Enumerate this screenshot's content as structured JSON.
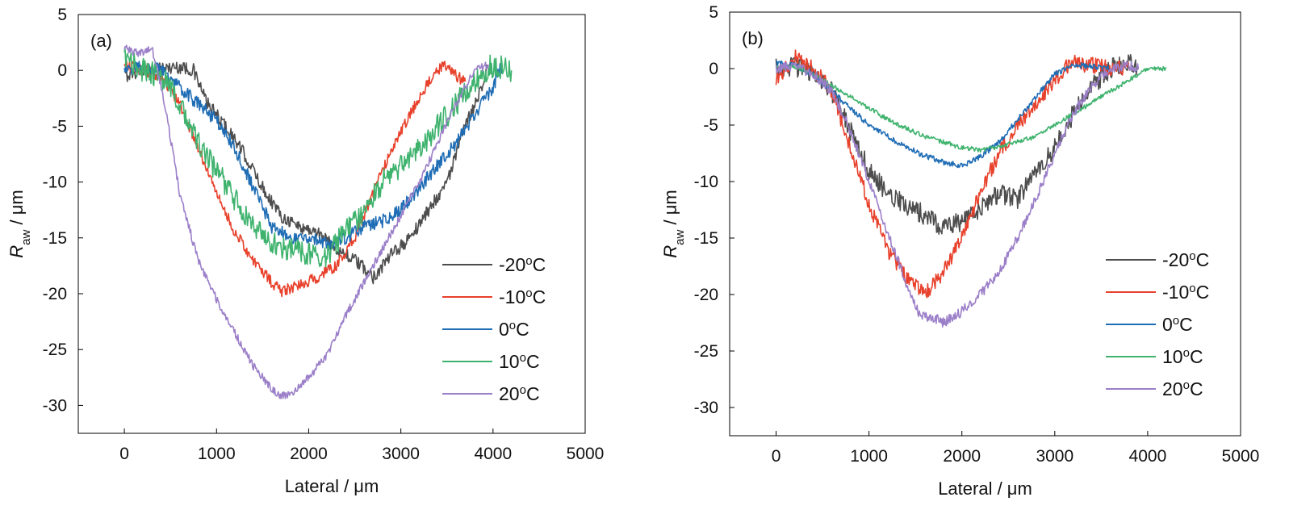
{
  "chart_data": [
    {
      "type": "line",
      "panel_label": "(a)",
      "xlabel": "Lateral / μm",
      "ylabel_main": "R",
      "ylabel_sub": "aw",
      "ylabel_unit": " / μm",
      "xlim": [
        -500,
        5000
      ],
      "ylim": [
        -32.5,
        5
      ],
      "xticks": [
        "0",
        "1000",
        "2000",
        "3000",
        "4000",
        "5000"
      ],
      "yticks": [
        "5",
        "0",
        "-5",
        "-10",
        "-15",
        "-20",
        "-25",
        "-30"
      ],
      "grid": false,
      "legend_position": "lower-right",
      "series": [
        {
          "name": "-20",
          "color": "#4d4d4d",
          "noise": 0.6,
          "x": [
            0,
            200,
            400,
            600,
            750,
            900,
            1100,
            1300,
            1500,
            1700,
            1900,
            2100,
            2300,
            2500,
            2700,
            2900,
            3100,
            3300,
            3500,
            3700,
            3850,
            3950
          ],
          "y": [
            -0.5,
            0,
            0.2,
            0.3,
            0,
            -3,
            -5,
            -7.5,
            -10.5,
            -13,
            -14,
            -14.5,
            -16,
            -17,
            -18.5,
            -16.5,
            -15,
            -12.5,
            -10,
            -5,
            -2,
            0.5
          ]
        },
        {
          "name": "-10",
          "color": "#e8412c",
          "noise": 0.5,
          "x": [
            0,
            200,
            400,
            600,
            800,
            1000,
            1200,
            1400,
            1600,
            1700,
            1900,
            2100,
            2300,
            2500,
            2700,
            2900,
            3100,
            3300,
            3400,
            3500,
            3600,
            3700
          ],
          "y": [
            0.5,
            0,
            -0.5,
            -3,
            -7,
            -11,
            -14.5,
            -17,
            -19,
            -19.8,
            -19.2,
            -18.5,
            -17.5,
            -15,
            -11,
            -7,
            -4,
            -1,
            0,
            0.5,
            -0.5,
            -1
          ]
        },
        {
          "name": "0",
          "color": "#1f6db5",
          "noise": 0.6,
          "x": [
            0,
            200,
            400,
            600,
            800,
            1000,
            1200,
            1400,
            1600,
            1800,
            2000,
            2200,
            2400,
            2600,
            2800,
            3000,
            3200,
            3400,
            3600,
            3800,
            4000,
            4100
          ],
          "y": [
            0.2,
            0.3,
            0,
            -1.5,
            -3,
            -4.5,
            -7,
            -10.5,
            -14,
            -15,
            -15,
            -15.5,
            -15,
            -14,
            -13.5,
            -12.5,
            -10.5,
            -8.5,
            -6.5,
            -4,
            -1.5,
            0.5
          ]
        },
        {
          "name": "10",
          "color": "#3fb36e",
          "noise": 1.1,
          "x": [
            0,
            200,
            400,
            600,
            800,
            1000,
            1200,
            1400,
            1600,
            1800,
            2000,
            2200,
            2400,
            2600,
            2800,
            3000,
            3200,
            3400,
            3600,
            3800,
            4000,
            4200
          ],
          "y": [
            1,
            0,
            -0.5,
            -3,
            -6.5,
            -9,
            -11.5,
            -14,
            -15.5,
            -16,
            -16.5,
            -16.5,
            -14.5,
            -12.5,
            -10,
            -8.5,
            -7,
            -5,
            -3,
            -1,
            0.5,
            0
          ]
        },
        {
          "name": "20",
          "color": "#9b7fc8",
          "noise": 0.35,
          "x": [
            0,
            150,
            300,
            400,
            500,
            600,
            800,
            1000,
            1200,
            1400,
            1600,
            1700,
            1800,
            2000,
            2200,
            2400,
            2600,
            2800,
            3000,
            3200,
            3400,
            3600,
            3800,
            3950
          ],
          "y": [
            2,
            1.5,
            2,
            -1.5,
            -6,
            -11,
            -17,
            -20.5,
            -23.5,
            -26.5,
            -28.5,
            -29.2,
            -29,
            -27.5,
            -25.5,
            -22,
            -19,
            -16,
            -13,
            -10,
            -6.5,
            -3,
            0,
            0.5
          ]
        }
      ]
    },
    {
      "type": "line",
      "panel_label": "(b)",
      "xlabel": "Lateral / μm",
      "ylabel_main": "R",
      "ylabel_sub": "aw",
      "ylabel_unit": " / μm",
      "xlim": [
        -500,
        5000
      ],
      "ylim": [
        -32.5,
        5
      ],
      "xticks": [
        "0",
        "1000",
        "2000",
        "3000",
        "4000",
        "5000"
      ],
      "yticks": [
        "5",
        "0",
        "-5",
        "-10",
        "-15",
        "-20",
        "-25",
        "-30"
      ],
      "grid": false,
      "legend_position": "lower-right",
      "series": [
        {
          "name": "-20",
          "color": "#4d4d4d",
          "noise": 0.9,
          "x": [
            0,
            200,
            400,
            600,
            800,
            1000,
            1200,
            1400,
            1600,
            1800,
            2000,
            2200,
            2400,
            2600,
            2800,
            3000,
            3200,
            3400,
            3600,
            3800,
            3900
          ],
          "y": [
            0,
            0.2,
            -0.5,
            -2,
            -5.5,
            -9,
            -11,
            -12,
            -13,
            -14,
            -13.5,
            -12.5,
            -11,
            -11.5,
            -9,
            -7,
            -4,
            -1.5,
            0,
            0.5,
            0
          ]
        },
        {
          "name": "-10",
          "color": "#e8412c",
          "noise": 0.7,
          "x": [
            0,
            200,
            400,
            600,
            800,
            1000,
            1200,
            1400,
            1600,
            1800,
            2000,
            2200,
            2400,
            2600,
            2800,
            3000,
            3100,
            3200,
            3400,
            3600,
            3800
          ],
          "y": [
            -1,
            1,
            0,
            -2,
            -7,
            -12,
            -16,
            -18.5,
            -20,
            -18,
            -15,
            -11,
            -7.5,
            -5,
            -3,
            -1,
            0,
            0.5,
            0.3,
            0,
            0
          ]
        },
        {
          "name": "0",
          "color": "#1f6db5",
          "noise": 0.25,
          "x": [
            0,
            200,
            400,
            600,
            800,
            1000,
            1200,
            1400,
            1600,
            1800,
            2000,
            2200,
            2400,
            2600,
            2800,
            3000,
            3200,
            3400,
            3600
          ],
          "y": [
            0.5,
            0.3,
            -0.5,
            -2,
            -3.5,
            -5,
            -6,
            -7,
            -7.7,
            -8.3,
            -8.6,
            -7.8,
            -6.5,
            -4.5,
            -2.5,
            -0.5,
            0.3,
            0.2,
            0
          ]
        },
        {
          "name": "10",
          "color": "#3fb36e",
          "noise": 0.2,
          "x": [
            0,
            200,
            400,
            600,
            800,
            1000,
            1200,
            1400,
            1600,
            1800,
            2000,
            2200,
            2400,
            2600,
            2800,
            3000,
            3200,
            3400,
            3600,
            3800,
            4000,
            4200
          ],
          "y": [
            0,
            0.2,
            -0.5,
            -1.5,
            -2.5,
            -3.5,
            -4.5,
            -5.3,
            -6,
            -6.5,
            -7,
            -7.2,
            -6.9,
            -6.5,
            -6,
            -5,
            -4,
            -3,
            -2,
            -1,
            0,
            0
          ]
        },
        {
          "name": "20",
          "color": "#9b7fc8",
          "noise": 0.45,
          "x": [
            0,
            200,
            400,
            600,
            800,
            1000,
            1200,
            1400,
            1550,
            1700,
            1800,
            2000,
            2200,
            2400,
            2600,
            2800,
            3000,
            3200,
            3400,
            3600,
            3800,
            3900
          ],
          "y": [
            0,
            0.2,
            -0.5,
            -2,
            -5.5,
            -10,
            -14.5,
            -19,
            -22,
            -22,
            -22.5,
            -21.5,
            -20,
            -18,
            -15,
            -11.5,
            -7.5,
            -4,
            -1.5,
            0,
            0.3,
            0
          ]
        }
      ]
    }
  ],
  "legend_temperature_suffix": "°C"
}
